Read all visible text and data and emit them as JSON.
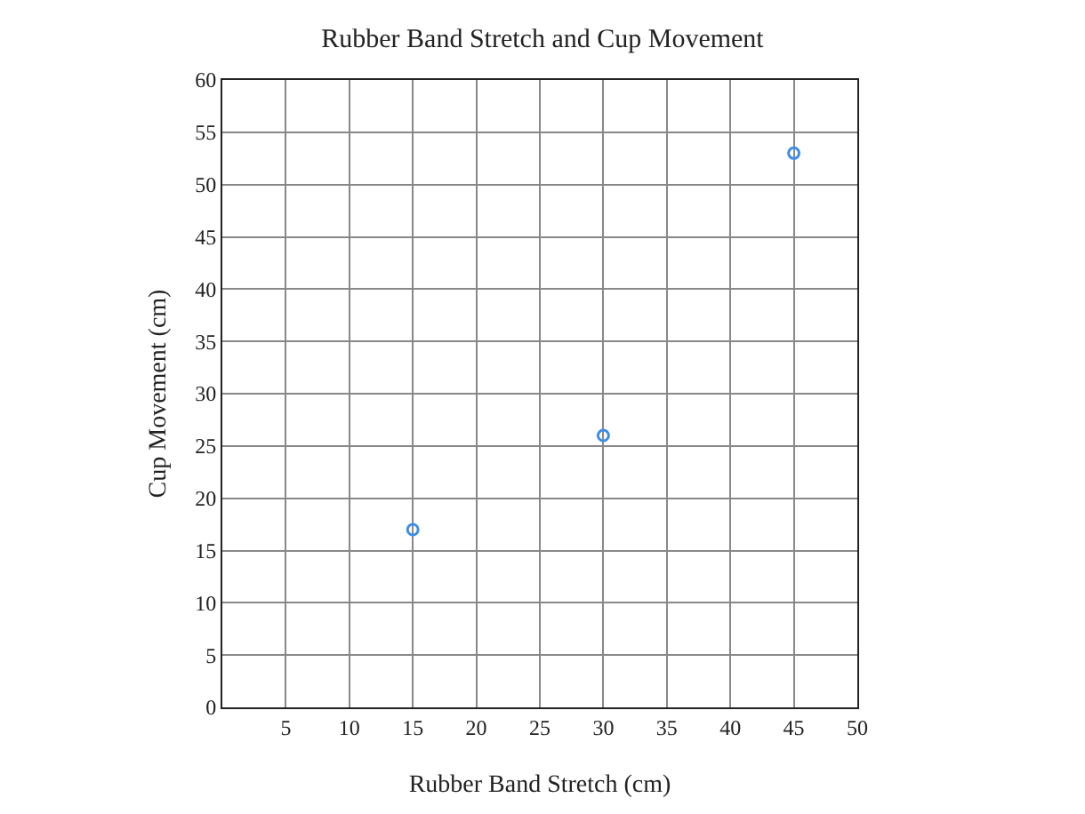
{
  "chart_data": {
    "type": "scatter",
    "title": "Rubber Band Stretch and Cup Movement",
    "xlabel": "Rubber Band Stretch (cm)",
    "ylabel": "Cup Movement (cm)",
    "x": [
      15,
      30,
      45
    ],
    "series": [
      {
        "color": "#3d8ee8",
        "values": [
          17,
          26,
          53
        ]
      }
    ],
    "xlim": [
      0,
      50
    ],
    "xticks": [
      5,
      10,
      15,
      20,
      25,
      30,
      35,
      40,
      45,
      50
    ],
    "ylim": [
      0,
      60
    ],
    "yticks": [
      0,
      5,
      10,
      15,
      20,
      25,
      30,
      35,
      40,
      45,
      50,
      55,
      60
    ],
    "grid": true,
    "marker": "circle",
    "legend": false
  }
}
